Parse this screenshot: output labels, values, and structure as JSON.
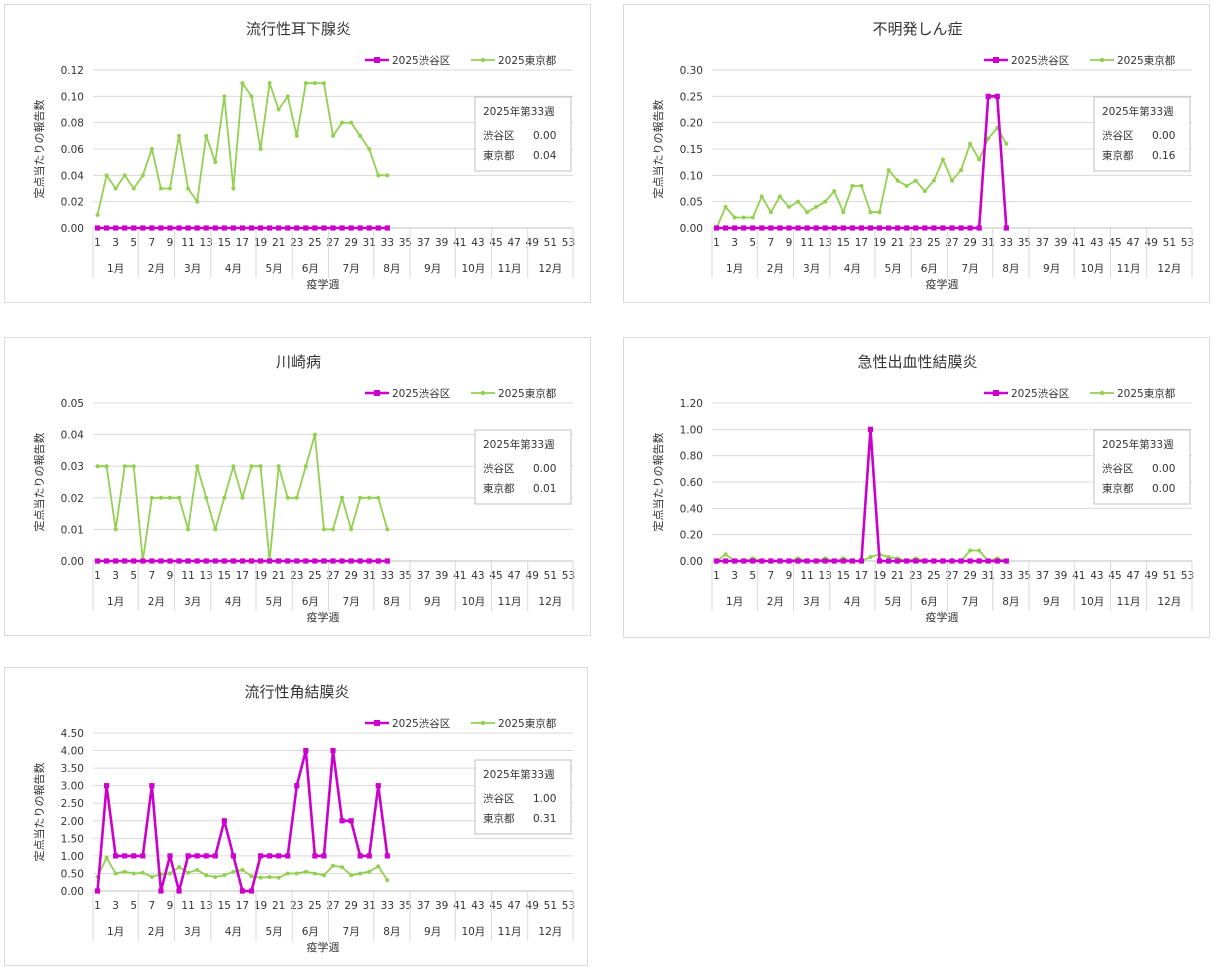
{
  "chart_data": [
    {
      "type": "line",
      "title": "流行性耳下腺炎",
      "xlabel": "疫学週",
      "ylabel": "定点当たりの報告数",
      "x_ticks": [
        "1",
        "3",
        "5",
        "7",
        "9",
        "11",
        "13",
        "15",
        "17",
        "19",
        "21",
        "23",
        "25",
        "27",
        "29",
        "31",
        "33",
        "35",
        "37",
        "39",
        "41",
        "43",
        "45",
        "47",
        "49",
        "51",
        "53"
      ],
      "months": [
        "1月",
        "2月",
        "3月",
        "4月",
        "5月",
        "6月",
        "7月",
        "8月",
        "9月",
        "10月",
        "11月",
        "12月"
      ],
      "ylim": [
        0,
        0.12
      ],
      "y_ticks": [
        "0.00",
        "0.02",
        "0.04",
        "0.06",
        "0.08",
        "0.10",
        "0.12"
      ],
      "legend_position": "top-right",
      "series": [
        {
          "name": "2025渋谷区",
          "color": "#cc00cc",
          "values": [
            0,
            0,
            0,
            0,
            0,
            0,
            0,
            0,
            0,
            0,
            0,
            0,
            0,
            0,
            0,
            0,
            0,
            0,
            0,
            0,
            0,
            0,
            0,
            0,
            0,
            0,
            0,
            0,
            0,
            0,
            0,
            0,
            0
          ]
        },
        {
          "name": "2025東京都",
          "color": "#92d050",
          "values": [
            0.01,
            0.04,
            0.03,
            0.04,
            0.03,
            0.04,
            0.06,
            0.03,
            0.03,
            0.07,
            0.03,
            0.02,
            0.07,
            0.05,
            0.1,
            0.03,
            0.11,
            0.1,
            0.06,
            0.11,
            0.09,
            0.1,
            0.07,
            0.11,
            0.11,
            0.11,
            0.07,
            0.08,
            0.08,
            0.07,
            0.06,
            0.04,
            0.04
          ]
        }
      ],
      "info": {
        "heading": "2025年第33週",
        "rows": [
          {
            "label": "渋谷区",
            "value": "0.00"
          },
          {
            "label": "東京都",
            "value": "0.04"
          }
        ]
      }
    },
    {
      "type": "line",
      "title": "不明発しん症",
      "xlabel": "疫学週",
      "ylabel": "定点当たりの報告数",
      "x_ticks": [
        "1",
        "3",
        "5",
        "7",
        "9",
        "11",
        "13",
        "15",
        "17",
        "19",
        "21",
        "23",
        "25",
        "27",
        "29",
        "31",
        "33",
        "35",
        "37",
        "39",
        "41",
        "43",
        "45",
        "47",
        "49",
        "51",
        "53"
      ],
      "months": [
        "1月",
        "2月",
        "3月",
        "4月",
        "5月",
        "6月",
        "7月",
        "8月",
        "9月",
        "10月",
        "11月",
        "12月"
      ],
      "ylim": [
        0,
        0.3
      ],
      "y_ticks": [
        "0.00",
        "0.05",
        "0.10",
        "0.15",
        "0.20",
        "0.25",
        "0.30"
      ],
      "legend_position": "top-right",
      "series": [
        {
          "name": "2025渋谷区",
          "color": "#cc00cc",
          "values": [
            0,
            0,
            0,
            0,
            0,
            0,
            0,
            0,
            0,
            0,
            0,
            0,
            0,
            0,
            0,
            0,
            0,
            0,
            0,
            0,
            0,
            0,
            0,
            0,
            0,
            0,
            0,
            0,
            0,
            0,
            0.25,
            0.25,
            0
          ]
        },
        {
          "name": "2025東京都",
          "color": "#92d050",
          "values": [
            0,
            0.04,
            0.02,
            0.02,
            0.02,
            0.06,
            0.03,
            0.06,
            0.04,
            0.05,
            0.03,
            0.04,
            0.05,
            0.07,
            0.03,
            0.08,
            0.08,
            0.03,
            0.03,
            0.11,
            0.09,
            0.08,
            0.09,
            0.07,
            0.09,
            0.13,
            0.09,
            0.11,
            0.16,
            0.13,
            0.17,
            0.19,
            0.16
          ]
        }
      ],
      "info": {
        "heading": "2025年第33週",
        "rows": [
          {
            "label": "渋谷区",
            "value": "0.00"
          },
          {
            "label": "東京都",
            "value": "0.16"
          }
        ]
      }
    },
    {
      "type": "line",
      "title": "川崎病",
      "xlabel": "疫学週",
      "ylabel": "定点当たりの報告数",
      "x_ticks": [
        "1",
        "3",
        "5",
        "7",
        "9",
        "11",
        "13",
        "15",
        "17",
        "19",
        "21",
        "23",
        "25",
        "27",
        "29",
        "31",
        "33",
        "35",
        "37",
        "39",
        "41",
        "43",
        "45",
        "47",
        "49",
        "51",
        "53"
      ],
      "months": [
        "1月",
        "2月",
        "3月",
        "4月",
        "5月",
        "6月",
        "7月",
        "8月",
        "9月",
        "10月",
        "11月",
        "12月"
      ],
      "ylim": [
        0,
        0.05
      ],
      "y_ticks": [
        "0.00",
        "0.01",
        "0.02",
        "0.03",
        "0.04",
        "0.05"
      ],
      "legend_position": "top-right",
      "series": [
        {
          "name": "2025渋谷区",
          "color": "#cc00cc",
          "values": [
            0,
            0,
            0,
            0,
            0,
            0,
            0,
            0,
            0,
            0,
            0,
            0,
            0,
            0,
            0,
            0,
            0,
            0,
            0,
            0,
            0,
            0,
            0,
            0,
            0,
            0,
            0,
            0,
            0,
            0,
            0,
            0,
            0
          ]
        },
        {
          "name": "2025東京都",
          "color": "#92d050",
          "values": [
            0.03,
            0.03,
            0.01,
            0.03,
            0.03,
            0,
            0.02,
            0.02,
            0.02,
            0.02,
            0.01,
            0.03,
            0.02,
            0.01,
            0.02,
            0.03,
            0.02,
            0.03,
            0.03,
            0,
            0.03,
            0.02,
            0.02,
            0.03,
            0.04,
            0.01,
            0.01,
            0.02,
            0.01,
            0.02,
            0.02,
            0.02,
            0.01
          ]
        }
      ],
      "info": {
        "heading": "2025年第33週",
        "rows": [
          {
            "label": "渋谷区",
            "value": "0.00"
          },
          {
            "label": "東京都",
            "value": "0.01"
          }
        ]
      }
    },
    {
      "type": "line",
      "title": "急性出血性結膜炎",
      "xlabel": "疫学週",
      "ylabel": "定点当たりの報告数",
      "x_ticks": [
        "1",
        "3",
        "5",
        "7",
        "9",
        "11",
        "13",
        "15",
        "17",
        "19",
        "21",
        "23",
        "25",
        "27",
        "29",
        "31",
        "33",
        "35",
        "37",
        "39",
        "41",
        "43",
        "45",
        "47",
        "49",
        "51",
        "53"
      ],
      "months": [
        "1月",
        "2月",
        "3月",
        "4月",
        "5月",
        "6月",
        "7月",
        "8月",
        "9月",
        "10月",
        "11月",
        "12月"
      ],
      "ylim": [
        0,
        1.2
      ],
      "y_ticks": [
        "0.00",
        "0.20",
        "0.40",
        "0.60",
        "0.80",
        "1.00",
        "1.20"
      ],
      "legend_position": "top-right",
      "series": [
        {
          "name": "2025渋谷区",
          "color": "#cc00cc",
          "values": [
            0,
            0,
            0,
            0,
            0,
            0,
            0,
            0,
            0,
            0,
            0,
            0,
            0,
            0,
            0,
            0,
            0,
            1.0,
            0,
            0,
            0,
            0,
            0,
            0,
            0,
            0,
            0,
            0,
            0,
            0,
            0,
            0,
            0
          ]
        },
        {
          "name": "2025東京都",
          "color": "#92d050",
          "values": [
            0,
            0.05,
            0,
            0,
            0.02,
            0,
            0,
            0,
            0,
            0.02,
            0,
            0,
            0.02,
            0,
            0.02,
            0,
            0,
            0.03,
            0.05,
            0.03,
            0.02,
            0,
            0.02,
            0,
            0,
            0,
            0,
            0,
            0.08,
            0.08,
            0,
            0.02,
            0
          ]
        }
      ],
      "info": {
        "heading": "2025年第33週",
        "rows": [
          {
            "label": "渋谷区",
            "value": "0.00"
          },
          {
            "label": "東京都",
            "value": "0.00"
          }
        ]
      }
    },
    {
      "type": "line",
      "title": "流行性角結膜炎",
      "xlabel": "疫学週",
      "ylabel": "定点当たりの報告数",
      "x_ticks": [
        "1",
        "3",
        "5",
        "7",
        "9",
        "11",
        "13",
        "15",
        "17",
        "19",
        "21",
        "23",
        "25",
        "27",
        "29",
        "31",
        "33",
        "35",
        "37",
        "39",
        "41",
        "43",
        "45",
        "47",
        "49",
        "51",
        "53"
      ],
      "months": [
        "1月",
        "2月",
        "3月",
        "4月",
        "5月",
        "6月",
        "7月",
        "8月",
        "9月",
        "10月",
        "11月",
        "12月"
      ],
      "ylim": [
        0,
        4.5
      ],
      "y_ticks": [
        "0.00",
        "0.50",
        "1.00",
        "1.50",
        "2.00",
        "2.50",
        "3.00",
        "3.50",
        "4.00",
        "4.50"
      ],
      "legend_position": "top-right",
      "series": [
        {
          "name": "2025渋谷区",
          "color": "#cc00cc",
          "values": [
            0,
            3,
            1,
            1,
            1,
            1,
            3,
            0,
            1,
            0,
            1,
            1,
            1,
            1,
            2,
            1,
            0,
            0,
            1,
            1,
            1,
            1,
            3,
            4,
            1,
            1,
            4,
            2,
            2,
            1,
            1,
            3,
            1
          ]
        },
        {
          "name": "2025東京都",
          "color": "#92d050",
          "values": [
            0.4,
            0.95,
            0.5,
            0.55,
            0.5,
            0.52,
            0.4,
            0.48,
            0.5,
            0.68,
            0.52,
            0.6,
            0.45,
            0.4,
            0.45,
            0.55,
            0.6,
            0.42,
            0.38,
            0.4,
            0.38,
            0.5,
            0.5,
            0.55,
            0.5,
            0.45,
            0.72,
            0.68,
            0.45,
            0.5,
            0.55,
            0.7,
            0.31
          ]
        }
      ],
      "info": {
        "heading": "2025年第33週",
        "rows": [
          {
            "label": "渋谷区",
            "value": "1.00"
          },
          {
            "label": "東京都",
            "value": "0.31"
          }
        ]
      }
    }
  ]
}
